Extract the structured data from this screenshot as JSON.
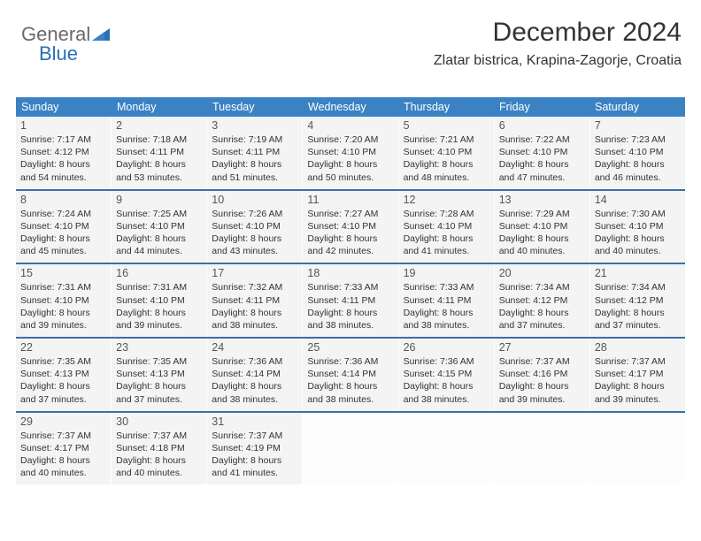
{
  "brand": {
    "part1": "General",
    "part2": "Blue"
  },
  "title": "December 2024",
  "location": "Zlatar bistrica, Krapina-Zagorje, Croatia",
  "colors": {
    "header_bg": "#3b82c4",
    "header_text": "#ffffff",
    "week_border": "#3b6fa8",
    "cell_bg": "#f4f4f4",
    "brand_gray": "#6a6a6a",
    "brand_blue": "#2d6fb6"
  },
  "day_headers": [
    "Sunday",
    "Monday",
    "Tuesday",
    "Wednesday",
    "Thursday",
    "Friday",
    "Saturday"
  ],
  "weeks": [
    [
      {
        "n": "1",
        "sr": "7:17 AM",
        "ss": "4:12 PM",
        "dl": "8 hours and 54 minutes."
      },
      {
        "n": "2",
        "sr": "7:18 AM",
        "ss": "4:11 PM",
        "dl": "8 hours and 53 minutes."
      },
      {
        "n": "3",
        "sr": "7:19 AM",
        "ss": "4:11 PM",
        "dl": "8 hours and 51 minutes."
      },
      {
        "n": "4",
        "sr": "7:20 AM",
        "ss": "4:10 PM",
        "dl": "8 hours and 50 minutes."
      },
      {
        "n": "5",
        "sr": "7:21 AM",
        "ss": "4:10 PM",
        "dl": "8 hours and 48 minutes."
      },
      {
        "n": "6",
        "sr": "7:22 AM",
        "ss": "4:10 PM",
        "dl": "8 hours and 47 minutes."
      },
      {
        "n": "7",
        "sr": "7:23 AM",
        "ss": "4:10 PM",
        "dl": "8 hours and 46 minutes."
      }
    ],
    [
      {
        "n": "8",
        "sr": "7:24 AM",
        "ss": "4:10 PM",
        "dl": "8 hours and 45 minutes."
      },
      {
        "n": "9",
        "sr": "7:25 AM",
        "ss": "4:10 PM",
        "dl": "8 hours and 44 minutes."
      },
      {
        "n": "10",
        "sr": "7:26 AM",
        "ss": "4:10 PM",
        "dl": "8 hours and 43 minutes."
      },
      {
        "n": "11",
        "sr": "7:27 AM",
        "ss": "4:10 PM",
        "dl": "8 hours and 42 minutes."
      },
      {
        "n": "12",
        "sr": "7:28 AM",
        "ss": "4:10 PM",
        "dl": "8 hours and 41 minutes."
      },
      {
        "n": "13",
        "sr": "7:29 AM",
        "ss": "4:10 PM",
        "dl": "8 hours and 40 minutes."
      },
      {
        "n": "14",
        "sr": "7:30 AM",
        "ss": "4:10 PM",
        "dl": "8 hours and 40 minutes."
      }
    ],
    [
      {
        "n": "15",
        "sr": "7:31 AM",
        "ss": "4:10 PM",
        "dl": "8 hours and 39 minutes."
      },
      {
        "n": "16",
        "sr": "7:31 AM",
        "ss": "4:10 PM",
        "dl": "8 hours and 39 minutes."
      },
      {
        "n": "17",
        "sr": "7:32 AM",
        "ss": "4:11 PM",
        "dl": "8 hours and 38 minutes."
      },
      {
        "n": "18",
        "sr": "7:33 AM",
        "ss": "4:11 PM",
        "dl": "8 hours and 38 minutes."
      },
      {
        "n": "19",
        "sr": "7:33 AM",
        "ss": "4:11 PM",
        "dl": "8 hours and 38 minutes."
      },
      {
        "n": "20",
        "sr": "7:34 AM",
        "ss": "4:12 PM",
        "dl": "8 hours and 37 minutes."
      },
      {
        "n": "21",
        "sr": "7:34 AM",
        "ss": "4:12 PM",
        "dl": "8 hours and 37 minutes."
      }
    ],
    [
      {
        "n": "22",
        "sr": "7:35 AM",
        "ss": "4:13 PM",
        "dl": "8 hours and 37 minutes."
      },
      {
        "n": "23",
        "sr": "7:35 AM",
        "ss": "4:13 PM",
        "dl": "8 hours and 37 minutes."
      },
      {
        "n": "24",
        "sr": "7:36 AM",
        "ss": "4:14 PM",
        "dl": "8 hours and 38 minutes."
      },
      {
        "n": "25",
        "sr": "7:36 AM",
        "ss": "4:14 PM",
        "dl": "8 hours and 38 minutes."
      },
      {
        "n": "26",
        "sr": "7:36 AM",
        "ss": "4:15 PM",
        "dl": "8 hours and 38 minutes."
      },
      {
        "n": "27",
        "sr": "7:37 AM",
        "ss": "4:16 PM",
        "dl": "8 hours and 39 minutes."
      },
      {
        "n": "28",
        "sr": "7:37 AM",
        "ss": "4:17 PM",
        "dl": "8 hours and 39 minutes."
      }
    ],
    [
      {
        "n": "29",
        "sr": "7:37 AM",
        "ss": "4:17 PM",
        "dl": "8 hours and 40 minutes."
      },
      {
        "n": "30",
        "sr": "7:37 AM",
        "ss": "4:18 PM",
        "dl": "8 hours and 40 minutes."
      },
      {
        "n": "31",
        "sr": "7:37 AM",
        "ss": "4:19 PM",
        "dl": "8 hours and 41 minutes."
      },
      null,
      null,
      null,
      null
    ]
  ],
  "labels": {
    "sunrise": "Sunrise:",
    "sunset": "Sunset:",
    "daylight": "Daylight:"
  }
}
